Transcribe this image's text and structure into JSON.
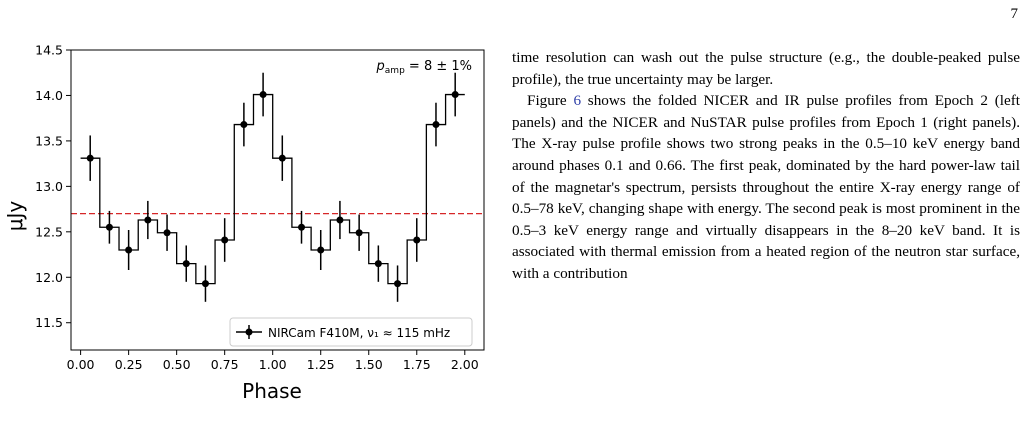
{
  "page": {
    "number": "7"
  },
  "chart_data": {
    "type": "line",
    "step": true,
    "xlabel": "Phase",
    "ylabel": "μJy",
    "xlim": [
      -0.05,
      2.1
    ],
    "ylim": [
      11.2,
      14.5
    ],
    "xticks": [
      0.0,
      0.25,
      0.5,
      0.75,
      1.0,
      1.25,
      1.5,
      1.75,
      2.0
    ],
    "xtick_labels": [
      "0.00",
      "0.25",
      "0.50",
      "0.75",
      "1.00",
      "1.25",
      "1.50",
      "1.75",
      "2.00"
    ],
    "yticks": [
      11.5,
      12.0,
      12.5,
      13.0,
      13.5,
      14.0,
      14.5
    ],
    "ytick_labels": [
      "11.5",
      "12.0",
      "12.5",
      "13.0",
      "13.5",
      "14.0",
      "14.5"
    ],
    "bin_width": 0.1,
    "series": [
      {
        "name": "NIRCam F410M, ν₁ ≈ 115 mHz",
        "color": "#000000",
        "x": [
          0.05,
          0.15,
          0.25,
          0.35,
          0.45,
          0.55,
          0.65,
          0.75,
          0.85,
          0.95,
          1.05,
          1.15,
          1.25,
          1.35,
          1.45,
          1.55,
          1.65,
          1.75,
          1.85,
          1.95
        ],
        "y": [
          13.31,
          12.55,
          12.3,
          12.63,
          12.49,
          12.15,
          11.93,
          12.41,
          13.68,
          14.01,
          13.31,
          12.55,
          12.3,
          12.63,
          12.49,
          12.15,
          11.93,
          12.41,
          13.68,
          14.01
        ],
        "yerr": [
          0.25,
          0.18,
          0.22,
          0.21,
          0.2,
          0.2,
          0.2,
          0.24,
          0.24,
          0.24,
          0.25,
          0.18,
          0.22,
          0.21,
          0.2,
          0.2,
          0.2,
          0.24,
          0.24,
          0.24
        ]
      }
    ],
    "reference_line": {
      "y": 12.7,
      "color": "#d62728",
      "style": "dashed"
    },
    "annotation": {
      "var": "p",
      "sub": "amp",
      "rest": " = 8 ± 1%"
    },
    "legend": {
      "label": "NIRCam F410M, ν₁ ≈ 115 mHz",
      "location": "lower-right"
    },
    "grid": false
  },
  "text": {
    "p1": "time resolution can wash out the pulse structure (e.g., the double-peaked pulse profile), the true uncertainty may be larger.",
    "p2_before": "Figure ",
    "p2_ref": "6",
    "p2_after": " shows the folded NICER and IR pulse profiles from Epoch 2 (left panels) and the NICER and NuSTAR pulse profiles from Epoch 1 (right panels). The X-ray pulse profile shows two strong peaks in the 0.5–10 keV energy band around phases 0.1 and 0.66. The first peak, dominated by the hard power-law tail of the magnetar's spectrum, persists throughout the entire X-ray energy range of 0.5–78 keV, changing shape with energy. The second peak is most prominent in the 0.5–3 keV energy range and virtually disappears in the 8–20 keV band. It is associated with thermal emission from a heated region of the neutron star surface, with a contribution"
  }
}
